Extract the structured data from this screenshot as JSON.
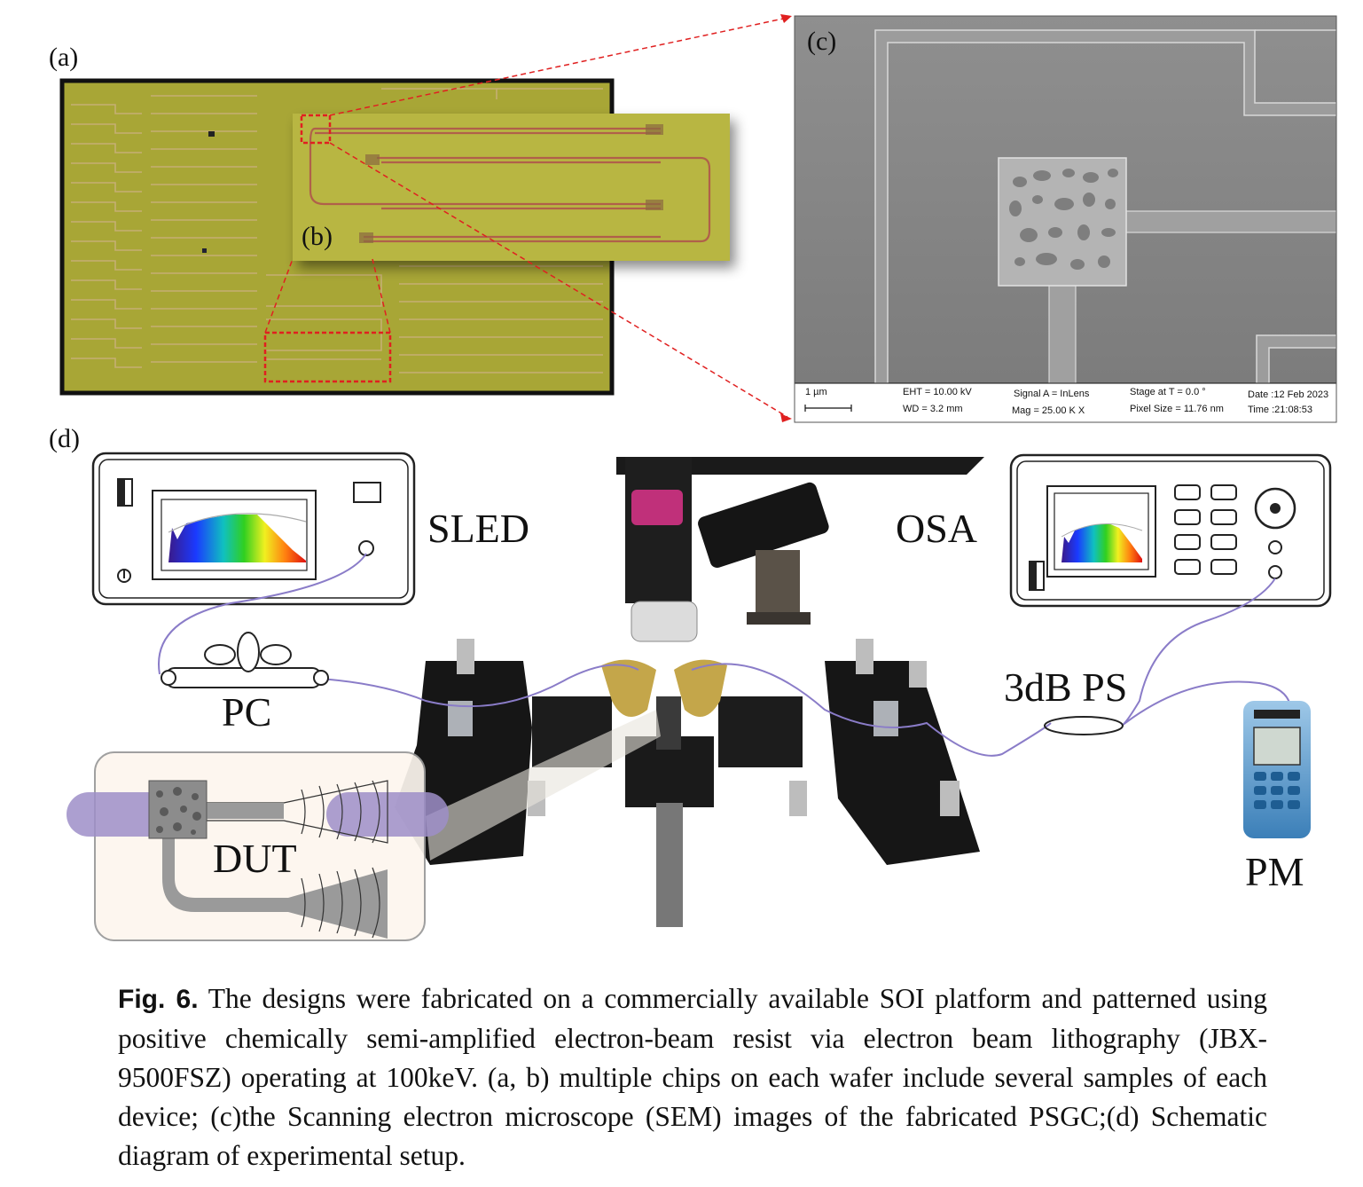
{
  "panel_labels": {
    "a": "(a)",
    "b": "(b)",
    "c": "(c)",
    "d": "(d)"
  },
  "sem": {
    "scale": "1 µm",
    "eht": "EHT = 10.00 kV",
    "wd": "WD = 3.2 mm",
    "signal": "Signal A = InLens",
    "mag": "Mag = 25.00 K X",
    "stage": "Stage at T = 0.0 °",
    "pixel": "Pixel Size = 11.76 nm",
    "date": "Date :12 Feb 2023",
    "time": "Time :21:08:53"
  },
  "setup_labels": {
    "sled": "SLED",
    "osa": "OSA",
    "pc": "PC",
    "dut": "DUT",
    "ps": "3dB PS",
    "pm": "PM"
  },
  "caption": {
    "fig_label": "Fig. 6.",
    "text": "The designs were fabricated on a commercially available SOI platform and patterned using positive chemically semi-amplified electron-beam resist via electron beam lithography (JBX-9500FSZ) operating at 100keV. (a, b) multiple chips on each wafer include several samples of each device; (c)the Scanning electron microscope (SEM) images of the fabricated PSGC;(d) Schematic diagram of experimental setup."
  },
  "colors": {
    "chip_green": "#a9a935",
    "sem_gray": "#8a8a8a",
    "highlight_red": "#e02020",
    "fiber": "#8a7cc8"
  }
}
